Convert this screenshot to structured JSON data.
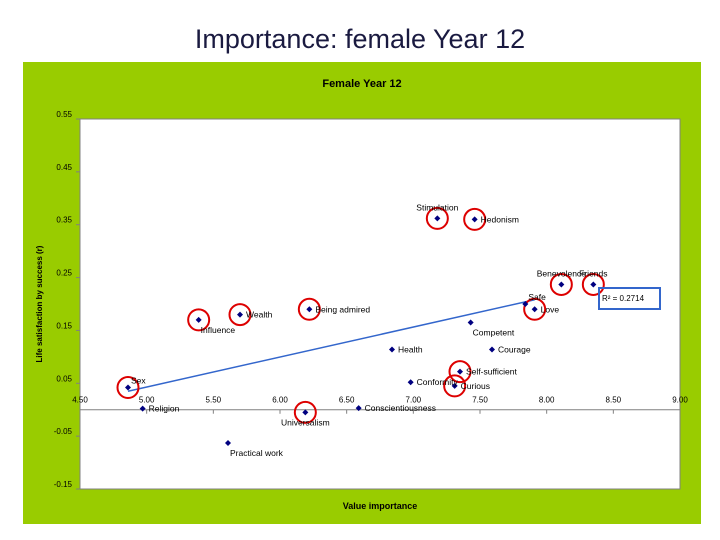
{
  "slide": {
    "title": "Importance: female Year 12"
  },
  "colors": {
    "frame": "#99cc00",
    "plot_bg": "#ffffff",
    "marker": "#000080",
    "trend": "#3366cc",
    "circle": "#dd0000",
    "r2_box": "#3366cc"
  },
  "chart_data": {
    "type": "scatter",
    "title": "Female Year 12",
    "xlabel": "Value importance",
    "ylabel": "Life satisfaction by success (r)",
    "xlim": [
      4.5,
      9.0
    ],
    "ylim": [
      -0.15,
      0.55
    ],
    "xticks": [
      4.5,
      5.0,
      5.5,
      6.0,
      6.5,
      7.0,
      7.5,
      8.0,
      8.5,
      9.0
    ],
    "xtick_labels": [
      "4.50",
      "5.00",
      "5.50",
      "6.00",
      "6.50",
      "7.00",
      "7.50",
      "8.00",
      "8.50",
      "9.00"
    ],
    "yticks": [
      0.55,
      0.45,
      0.35,
      0.25,
      0.15,
      0.05,
      -0.05,
      -0.15
    ],
    "ytick_labels": [
      "0.55",
      "0.45",
      "0.35",
      "0.25",
      "0.15",
      "0.05",
      "-0.05",
      "-0.15"
    ],
    "points": [
      {
        "label": "Sex",
        "x": 4.86,
        "y": 0.042,
        "circled": true,
        "label_pos": "above-right"
      },
      {
        "label": "Religion",
        "x": 4.97,
        "y": 0.002,
        "circled": false,
        "label_pos": "right"
      },
      {
        "label": "Influence",
        "x": 5.39,
        "y": 0.17,
        "circled": true,
        "label_pos": "below-right"
      },
      {
        "label": "Wealth",
        "x": 5.7,
        "y": 0.18,
        "circled": true,
        "label_pos": "right"
      },
      {
        "label": "Practical work",
        "x": 5.61,
        "y": -0.063,
        "circled": false,
        "label_pos": "below-right"
      },
      {
        "label": "Universalism",
        "x": 6.19,
        "y": -0.005,
        "circled": true,
        "label_pos": "below"
      },
      {
        "label": "Being admired",
        "x": 6.22,
        "y": 0.19,
        "circled": true,
        "label_pos": "right"
      },
      {
        "label": "Conscientiousness",
        "x": 6.59,
        "y": 0.003,
        "circled": false,
        "label_pos": "right"
      },
      {
        "label": "Health",
        "x": 6.84,
        "y": 0.114,
        "circled": false,
        "label_pos": "right"
      },
      {
        "label": "Conformity",
        "x": 6.98,
        "y": 0.052,
        "circled": false,
        "label_pos": "right"
      },
      {
        "label": "Stimulation",
        "x": 7.18,
        "y": 0.362,
        "circled": true,
        "label_pos": "above"
      },
      {
        "label": "Hedonism",
        "x": 7.46,
        "y": 0.36,
        "circled": true,
        "label_pos": "right"
      },
      {
        "label": "Curious",
        "x": 7.31,
        "y": 0.045,
        "circled": true,
        "label_pos": "right"
      },
      {
        "label": "Self-sufficient",
        "x": 7.35,
        "y": 0.072,
        "circled": true,
        "label_pos": "right"
      },
      {
        "label": "Competent",
        "x": 7.43,
        "y": 0.165,
        "circled": false,
        "label_pos": "below-right"
      },
      {
        "label": "Courage",
        "x": 7.59,
        "y": 0.114,
        "circled": false,
        "label_pos": "right"
      },
      {
        "label": "Safe",
        "x": 7.84,
        "y": 0.2,
        "circled": false,
        "label_pos": "above-right"
      },
      {
        "label": "Love",
        "x": 7.91,
        "y": 0.19,
        "circled": true,
        "label_pos": "right"
      },
      {
        "label": "Benevolence",
        "x": 8.11,
        "y": 0.237,
        "circled": true,
        "label_pos": "above"
      },
      {
        "label": "Friends",
        "x": 8.35,
        "y": 0.237,
        "circled": true,
        "label_pos": "above"
      }
    ],
    "trendline": {
      "x": [
        4.86,
        7.91
      ],
      "y": [
        0.035,
        0.208
      ]
    },
    "r_squared_label": "R² = 0.2714",
    "grid": false,
    "legend": "none"
  }
}
